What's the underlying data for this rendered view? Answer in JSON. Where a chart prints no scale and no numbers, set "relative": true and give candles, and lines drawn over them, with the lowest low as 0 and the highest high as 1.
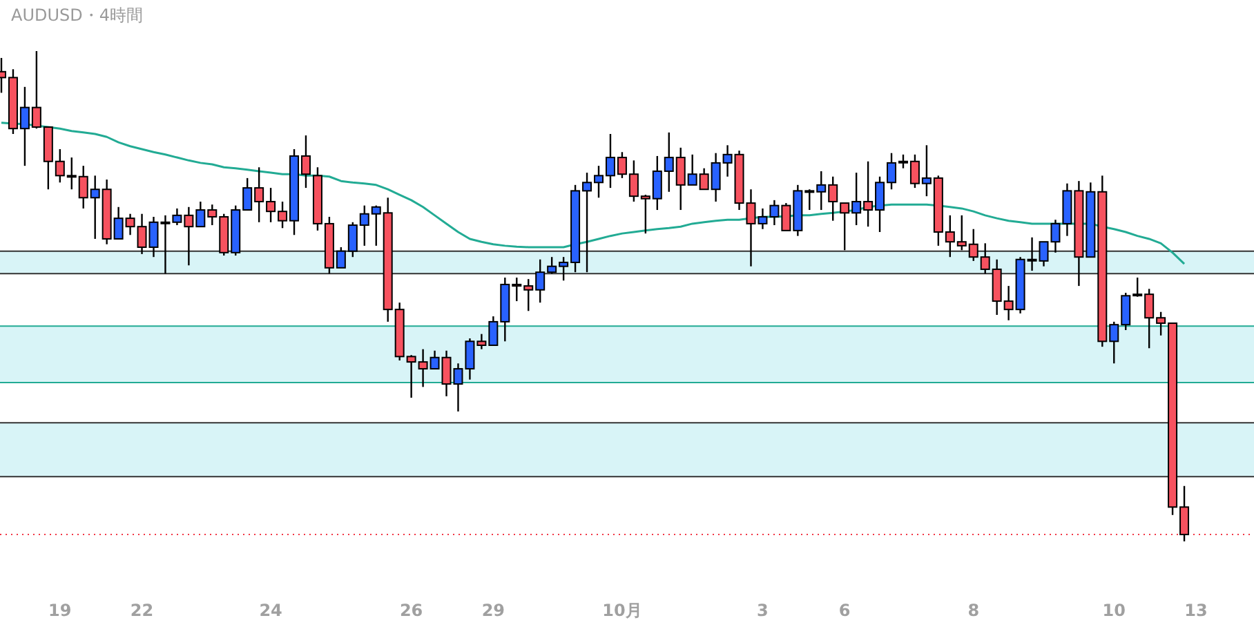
{
  "chart_data": {
    "type": "candlestick",
    "title": "AUDUSD・4時間",
    "relative": true,
    "tick_labels": "x",
    "categories": [
      null,
      null,
      null,
      null,
      null,
      "19",
      null,
      null,
      null,
      null,
      null,
      null,
      "22",
      null,
      null,
      null,
      null,
      null,
      null,
      null,
      null,
      null,
      null,
      "24",
      null,
      null,
      null,
      null,
      null,
      null,
      null,
      null,
      null,
      null,
      null,
      "26",
      null,
      null,
      null,
      null,
      null,
      null,
      "29",
      null,
      null,
      null,
      null,
      null,
      null,
      null,
      null,
      null,
      null,
      "10月",
      null,
      null,
      null,
      null,
      null,
      null,
      null,
      null,
      null,
      null,
      null,
      "3",
      null,
      null,
      null,
      null,
      null,
      null,
      "6",
      null,
      null,
      null,
      null,
      null,
      null,
      null,
      null,
      null,
      null,
      "8",
      null,
      null,
      null,
      null,
      null,
      null,
      null,
      null,
      null,
      null,
      null,
      "10",
      null,
      null,
      null,
      null,
      null,
      null,
      "13"
    ],
    "ohlc": [
      [
        0.958,
        0.986,
        0.915,
        0.946
      ],
      [
        0.946,
        0.963,
        0.831,
        0.842
      ],
      [
        0.842,
        0.927,
        0.766,
        0.885
      ],
      [
        0.885,
        1,
        0.842,
        0.845
      ],
      [
        0.845,
        0.845,
        0.718,
        0.775
      ],
      [
        0.775,
        0.8,
        0.732,
        0.746
      ],
      [
        0.746,
        0.783,
        0.718,
        0.746
      ],
      [
        0.744,
        0.766,
        0.679,
        0.701
      ],
      [
        0.701,
        0.746,
        0.617,
        0.718
      ],
      [
        0.718,
        0.738,
        0.606,
        0.617
      ],
      [
        0.617,
        0.682,
        0.617,
        0.659
      ],
      [
        0.659,
        0.668,
        0.625,
        0.642
      ],
      [
        0.642,
        0.668,
        0.586,
        0.6
      ],
      [
        0.6,
        0.662,
        0.58,
        0.651
      ],
      [
        0.651,
        0.665,
        0.546,
        0.651
      ],
      [
        0.651,
        0.679,
        0.645,
        0.665
      ],
      [
        0.665,
        0.682,
        0.563,
        0.642
      ],
      [
        0.642,
        0.693,
        0.642,
        0.676
      ],
      [
        0.676,
        0.687,
        0.645,
        0.662
      ],
      [
        0.662,
        0.668,
        0.583,
        0.589
      ],
      [
        0.589,
        0.685,
        0.583,
        0.676
      ],
      [
        0.676,
        0.741,
        0.676,
        0.721
      ],
      [
        0.721,
        0.763,
        0.651,
        0.693
      ],
      [
        0.693,
        0.721,
        0.651,
        0.673
      ],
      [
        0.673,
        0.693,
        0.639,
        0.654
      ],
      [
        0.654,
        0.8,
        0.625,
        0.786
      ],
      [
        0.786,
        0.828,
        0.721,
        0.749
      ],
      [
        0.746,
        0.763,
        0.634,
        0.648
      ],
      [
        0.648,
        0.662,
        0.546,
        0.558
      ],
      [
        0.558,
        0.6,
        0.558,
        0.592
      ],
      [
        0.592,
        0.651,
        0.58,
        0.645
      ],
      [
        0.645,
        0.685,
        0.603,
        0.668
      ],
      [
        0.668,
        0.685,
        0.603,
        0.682
      ],
      [
        0.67,
        0.701,
        0.448,
        0.473
      ],
      [
        0.473,
        0.487,
        0.369,
        0.377
      ],
      [
        0.377,
        0.38,
        0.293,
        0.366
      ],
      [
        0.366,
        0.392,
        0.315,
        0.352
      ],
      [
        0.352,
        0.389,
        0.352,
        0.375
      ],
      [
        0.375,
        0.389,
        0.296,
        0.321
      ],
      [
        0.321,
        0.363,
        0.265,
        0.352
      ],
      [
        0.352,
        0.414,
        0.33,
        0.408
      ],
      [
        0.408,
        0.423,
        0.392,
        0.4
      ],
      [
        0.4,
        0.459,
        0.4,
        0.448
      ],
      [
        0.448,
        0.538,
        0.408,
        0.524
      ],
      [
        0.524,
        0.538,
        0.49,
        0.521
      ],
      [
        0.521,
        0.535,
        0.47,
        0.513
      ],
      [
        0.513,
        0.575,
        0.487,
        0.549
      ],
      [
        0.549,
        0.58,
        0.546,
        0.561
      ],
      [
        0.561,
        0.58,
        0.532,
        0.569
      ],
      [
        0.569,
        0.727,
        0.549,
        0.715
      ],
      [
        0.715,
        0.752,
        0.549,
        0.732
      ],
      [
        0.732,
        0.766,
        0.701,
        0.746
      ],
      [
        0.746,
        0.831,
        0.721,
        0.783
      ],
      [
        0.783,
        0.794,
        0.741,
        0.749
      ],
      [
        0.749,
        0.777,
        0.693,
        0.704
      ],
      [
        0.704,
        0.707,
        0.628,
        0.699
      ],
      [
        0.699,
        0.786,
        0.676,
        0.755
      ],
      [
        0.755,
        0.834,
        0.713,
        0.783
      ],
      [
        0.783,
        0.803,
        0.676,
        0.727
      ],
      [
        0.727,
        0.789,
        0.727,
        0.749
      ],
      [
        0.749,
        0.761,
        0.718,
        0.718
      ],
      [
        0.718,
        0.792,
        0.693,
        0.772
      ],
      [
        0.772,
        0.808,
        0.744,
        0.789
      ],
      [
        0.789,
        0.797,
        0.676,
        0.69
      ],
      [
        0.69,
        0.718,
        0.561,
        0.648
      ],
      [
        0.648,
        0.679,
        0.637,
        0.662
      ],
      [
        0.662,
        0.696,
        0.645,
        0.685
      ],
      [
        0.685,
        0.69,
        0.634,
        0.634
      ],
      [
        0.634,
        0.727,
        0.623,
        0.715
      ],
      [
        0.715,
        0.718,
        0.676,
        0.715
      ],
      [
        0.713,
        0.755,
        0.676,
        0.727
      ],
      [
        0.727,
        0.744,
        0.654,
        0.693
      ],
      [
        0.69,
        0.69,
        0.594,
        0.67
      ],
      [
        0.67,
        0.752,
        0.645,
        0.693
      ],
      [
        0.693,
        0.775,
        0.642,
        0.676
      ],
      [
        0.676,
        0.744,
        0.631,
        0.732
      ],
      [
        0.732,
        0.792,
        0.718,
        0.772
      ],
      [
        0.775,
        0.789,
        0.761,
        0.775
      ],
      [
        0.775,
        0.789,
        0.721,
        0.73
      ],
      [
        0.73,
        0.808,
        0.704,
        0.741
      ],
      [
        0.741,
        0.746,
        0.603,
        0.631
      ],
      [
        0.631,
        0.665,
        0.58,
        0.611
      ],
      [
        0.611,
        0.665,
        0.594,
        0.603
      ],
      [
        0.606,
        0.637,
        0.572,
        0.58
      ],
      [
        0.58,
        0.608,
        0.546,
        0.555
      ],
      [
        0.555,
        0.575,
        0.462,
        0.49
      ],
      [
        0.49,
        0.521,
        0.451,
        0.473
      ],
      [
        0.473,
        0.58,
        0.465,
        0.575
      ],
      [
        0.575,
        0.62,
        0.552,
        0.575
      ],
      [
        0.572,
        0.611,
        0.561,
        0.611
      ],
      [
        0.611,
        0.656,
        0.589,
        0.648
      ],
      [
        0.648,
        0.73,
        0.623,
        0.715
      ],
      [
        0.715,
        0.735,
        0.521,
        0.58
      ],
      [
        0.58,
        0.732,
        0.58,
        0.713
      ],
      [
        0.713,
        0.746,
        0.397,
        0.408
      ],
      [
        0.408,
        0.448,
        0.363,
        0.442
      ],
      [
        0.442,
        0.507,
        0.431,
        0.501
      ],
      [
        0.504,
        0.538,
        0.499,
        0.504
      ],
      [
        0.504,
        0.515,
        0.394,
        0.456
      ],
      [
        0.456,
        0.468,
        0.42,
        0.445
      ],
      [
        0.445,
        0.445,
        0.054,
        0.07
      ],
      [
        0.07,
        0.113,
        0,
        0.014
      ],
      null
    ],
    "colors": [
      "#f7525f",
      "#f7525f",
      "#2962ff",
      "#f7525f",
      "#f7525f",
      "#f7525f",
      "#2962ff",
      "#f7525f",
      "#2962ff",
      "#f7525f",
      "#2962ff",
      "#f7525f",
      "#f7525f",
      "#2962ff",
      "#2962ff",
      "#2962ff",
      "#f7525f",
      "#2962ff",
      "#f7525f",
      "#f7525f",
      "#2962ff",
      "#2962ff",
      "#f7525f",
      "#f7525f",
      "#f7525f",
      "#2962ff",
      "#f7525f",
      "#f7525f",
      "#f7525f",
      "#2962ff",
      "#2962ff",
      "#2962ff",
      "#2962ff",
      "#f7525f",
      "#f7525f",
      "#f7525f",
      "#f7525f",
      "#2962ff",
      "#f7525f",
      "#2962ff",
      "#2962ff",
      "#f7525f",
      "#2962ff",
      "#2962ff",
      "#f7525f",
      "#f7525f",
      "#2962ff",
      "#2962ff",
      "#2962ff",
      "#2962ff",
      "#2962ff",
      "#2962ff",
      "#2962ff",
      "#f7525f",
      "#f7525f",
      "#f7525f",
      "#2962ff",
      "#2962ff",
      "#f7525f",
      "#2962ff",
      "#f7525f",
      "#2962ff",
      "#2962ff",
      "#f7525f",
      "#f7525f",
      "#2962ff",
      "#2962ff",
      "#f7525f",
      "#2962ff",
      "#2962ff",
      "#2962ff",
      "#f7525f",
      "#f7525f",
      "#2962ff",
      "#f7525f",
      "#2962ff",
      "#2962ff",
      "#2962ff",
      "#f7525f",
      "#2962ff",
      "#f7525f",
      "#f7525f",
      "#f7525f",
      "#f7525f",
      "#f7525f",
      "#f7525f",
      "#f7525f",
      "#2962ff",
      "#2962ff",
      "#2962ff",
      "#2962ff",
      "#2962ff",
      "#f7525f",
      "#2962ff",
      "#f7525f",
      "#2962ff",
      "#2962ff",
      "#2962ff",
      "#f7525f",
      "#f7525f",
      "#f7525f",
      "#f7525f",
      null
    ],
    "series": [
      {
        "type": "line",
        "color": "#22ab94",
        "values": [
          0.854,
          0.852,
          0.851,
          0.848,
          0.845,
          0.842,
          0.837,
          0.834,
          0.831,
          0.825,
          0.814,
          0.806,
          0.8,
          0.794,
          0.789,
          0.783,
          0.777,
          0.772,
          0.769,
          0.763,
          0.761,
          0.758,
          0.755,
          0.752,
          0.749,
          0.749,
          0.746,
          0.746,
          0.744,
          0.735,
          0.732,
          0.73,
          0.727,
          0.718,
          0.707,
          0.696,
          0.682,
          0.665,
          0.648,
          0.631,
          0.617,
          0.611,
          0.606,
          0.603,
          0.601,
          0.6,
          0.6,
          0.6,
          0.6,
          0.606,
          0.611,
          0.617,
          0.623,
          0.628,
          0.631,
          0.634,
          0.637,
          0.639,
          0.642,
          0.648,
          0.651,
          0.654,
          0.656,
          0.656,
          0.659,
          0.662,
          0.662,
          0.663,
          0.665,
          0.665,
          0.668,
          0.67,
          0.673,
          0.676,
          0.682,
          0.685,
          0.687,
          0.687,
          0.687,
          0.687,
          0.685,
          0.682,
          0.679,
          0.673,
          0.665,
          0.659,
          0.654,
          0.651,
          0.648,
          0.648,
          0.648,
          0.648,
          0.648,
          0.648,
          0.642,
          0.637,
          0.631,
          0.623,
          0.617,
          0.608,
          0.589,
          0.566,
          null
        ]
      }
    ],
    "bands": [
      {
        "axis": "y",
        "from": 0.546,
        "to": 0.592,
        "color": "#d8f4f7"
      },
      {
        "axis": "y",
        "from": 0.324,
        "to": 0.439,
        "color": "#d8f4f7"
      },
      {
        "axis": "y",
        "from": 0.132,
        "to": 0.242,
        "color": "#d8f4f7"
      }
    ],
    "ref_lines": [
      {
        "axis": "y",
        "value": 0.592,
        "color": "#333333",
        "line_style": "solid"
      },
      {
        "axis": "y",
        "value": 0.546,
        "color": "#333333",
        "line_style": "solid"
      },
      {
        "axis": "y",
        "value": 0.439,
        "color": "#22ab94",
        "line_style": "solid"
      },
      {
        "axis": "y",
        "value": 0.324,
        "color": "#22ab94",
        "line_style": "solid"
      },
      {
        "axis": "y",
        "value": 0.242,
        "color": "#333333",
        "line_style": "solid"
      },
      {
        "axis": "y",
        "value": 0.132,
        "color": "#333333",
        "line_style": "solid"
      },
      {
        "axis": "y",
        "value": 0.014,
        "color": "#f23645",
        "line_style": "dotted"
      }
    ]
  }
}
